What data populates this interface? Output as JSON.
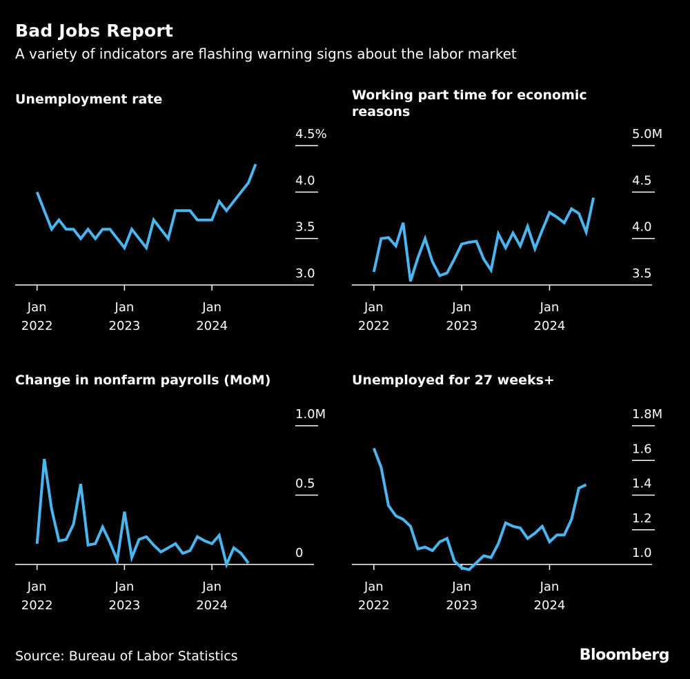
{
  "header": {
    "title": "Bad Jobs Report",
    "subtitle": "A variety of indicators are flashing warning signs about the labor market"
  },
  "footer": {
    "source": "Source: Bureau of Labor Statistics",
    "brand": "Bloomberg"
  },
  "colors": {
    "line": "#4ab6f0",
    "background": "#000000",
    "text": "#ffffff"
  },
  "chart_data": [
    {
      "type": "line",
      "title": [
        "Unemployment rate"
      ],
      "ylim": [
        3.0,
        4.5
      ],
      "yticks": [
        {
          "v": 3.0,
          "label": "3.0"
        },
        {
          "v": 3.5,
          "label": "3.5"
        },
        {
          "v": 4.0,
          "label": "4.0"
        },
        {
          "v": 4.5,
          "label": "4.5%"
        }
      ],
      "xticks": [
        {
          "t": 0,
          "label": [
            "Jan",
            "2022"
          ]
        },
        {
          "t": 12,
          "label": [
            "Jan",
            "2023"
          ]
        },
        {
          "t": 24,
          "label": [
            "Jan",
            "2024"
          ]
        }
      ],
      "xlim": [
        -3,
        38
      ],
      "series": [
        {
          "name": "Unemployment rate",
          "start_month": "2022-01",
          "values": [
            4.0,
            3.8,
            3.6,
            3.7,
            3.6,
            3.6,
            3.5,
            3.6,
            3.5,
            3.6,
            3.6,
            3.5,
            3.4,
            3.6,
            3.5,
            3.4,
            3.7,
            3.6,
            3.5,
            3.8,
            3.8,
            3.8,
            3.7,
            3.7,
            3.7,
            3.9,
            3.8,
            3.9,
            4.0,
            4.1,
            4.3
          ]
        }
      ]
    },
    {
      "type": "line",
      "title": [
        "Working part time for economic",
        "reasons"
      ],
      "ylim": [
        3.5,
        5.0
      ],
      "yticks": [
        {
          "v": 3.5,
          "label": "3.5"
        },
        {
          "v": 4.0,
          "label": "4.0"
        },
        {
          "v": 4.5,
          "label": "4.5"
        },
        {
          "v": 5.0,
          "label": "5.0M"
        }
      ],
      "xticks": [
        {
          "t": 0,
          "label": [
            "Jan",
            "2022"
          ]
        },
        {
          "t": 12,
          "label": [
            "Jan",
            "2023"
          ]
        },
        {
          "t": 24,
          "label": [
            "Jan",
            "2024"
          ]
        }
      ],
      "xlim": [
        -3,
        38
      ],
      "series": [
        {
          "name": "Working part time for economic reasons",
          "start_month": "2022-01",
          "values": [
            3.64,
            4.0,
            4.01,
            3.92,
            4.17,
            3.54,
            3.79,
            4.0,
            3.75,
            3.6,
            3.63,
            3.78,
            3.94,
            3.96,
            3.97,
            3.78,
            3.66,
            4.05,
            3.9,
            4.06,
            3.92,
            4.13,
            3.89,
            4.09,
            4.28,
            4.23,
            4.17,
            4.32,
            4.27,
            4.07,
            4.44
          ]
        }
      ]
    },
    {
      "type": "line",
      "title": [
        "Change in nonfarm payrolls (MoM)"
      ],
      "ylim": [
        0,
        1.0
      ],
      "yticks": [
        {
          "v": 0,
          "label": "0"
        },
        {
          "v": 0.5,
          "label": "0.5"
        },
        {
          "v": 1.0,
          "label": "1.0M"
        }
      ],
      "xticks": [
        {
          "t": 0,
          "label": [
            "Jan",
            "2022"
          ]
        },
        {
          "t": 12,
          "label": [
            "Jan",
            "2023"
          ]
        },
        {
          "t": 24,
          "label": [
            "Jan",
            "2024"
          ]
        }
      ],
      "xlim": [
        -3,
        38
      ],
      "series": [
        {
          "name": "Change in nonfarm payrolls",
          "start_month": "2022-01",
          "values": [
            0.15,
            0.76,
            0.4,
            0.17,
            0.18,
            0.29,
            0.58,
            0.14,
            0.15,
            0.27,
            0.16,
            0.03,
            0.38,
            0.05,
            0.18,
            0.2,
            0.14,
            0.09,
            0.12,
            0.15,
            0.08,
            0.1,
            0.2,
            0.17,
            0.15,
            0.21,
            0.0,
            0.12,
            0.08,
            0.01
          ]
        }
      ]
    },
    {
      "type": "line",
      "title": [
        "Unemployed for 27 weeks+"
      ],
      "ylim": [
        1.0,
        1.8
      ],
      "yticks": [
        {
          "v": 1.0,
          "label": "1.0"
        },
        {
          "v": 1.2,
          "label": "1.2"
        },
        {
          "v": 1.4,
          "label": "1.4"
        },
        {
          "v": 1.6,
          "label": "1.6"
        },
        {
          "v": 1.8,
          "label": "1.8M"
        }
      ],
      "xticks": [
        {
          "t": 0,
          "label": [
            "Jan",
            "2022"
          ]
        },
        {
          "t": 12,
          "label": [
            "Jan",
            "2023"
          ]
        },
        {
          "t": 24,
          "label": [
            "Jan",
            "2024"
          ]
        }
      ],
      "xlim": [
        -3,
        38
      ],
      "series": [
        {
          "name": "Unemployed for 27 weeks+",
          "start_month": "2022-01",
          "values": [
            1.67,
            1.56,
            1.34,
            1.28,
            1.26,
            1.22,
            1.09,
            1.1,
            1.08,
            1.13,
            1.15,
            1.02,
            0.98,
            0.97,
            1.01,
            1.05,
            1.04,
            1.12,
            1.24,
            1.22,
            1.21,
            1.15,
            1.18,
            1.22,
            1.13,
            1.17,
            1.17,
            1.26,
            1.44,
            1.46
          ]
        }
      ]
    }
  ]
}
